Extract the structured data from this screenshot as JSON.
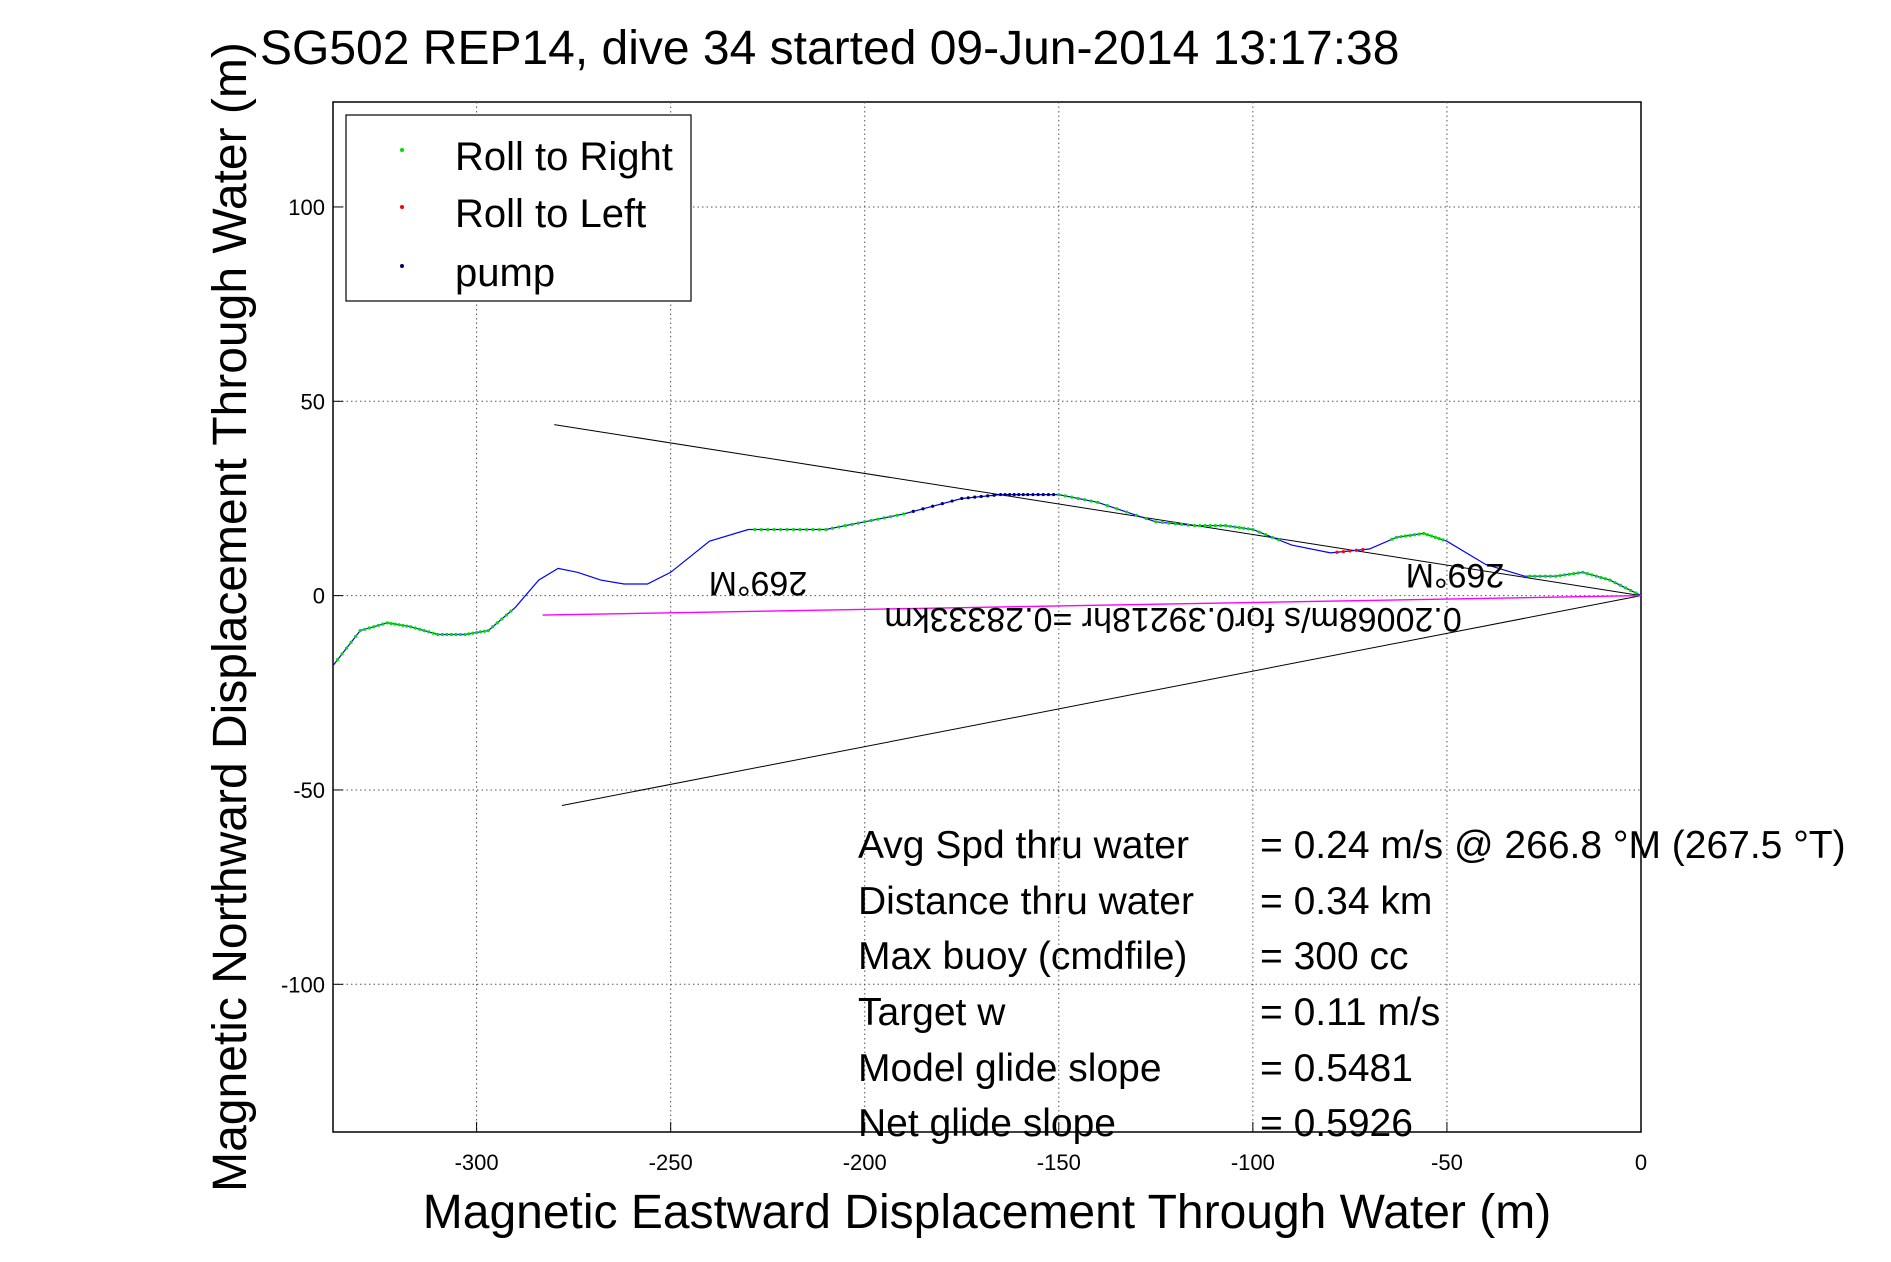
{
  "chart_data": {
    "type": "line",
    "title": "SG502 REP14, dive 34 started 09-Jun-2014 13:17:38",
    "xlabel": "Magnetic Eastward Displacement Through Water (m)",
    "ylabel": "Magnetic Northward Displacement Through Water (m)",
    "xlim": [
      -337,
      0
    ],
    "ylim": [
      -138,
      127
    ],
    "grid": true,
    "legend_placement": "top-left",
    "x_ticks": [
      "-300",
      "-250",
      "-200",
      "-150",
      "-100",
      "-50",
      "0"
    ],
    "y_ticks": [
      "100",
      "50",
      "0",
      "-50",
      "-100"
    ],
    "x_tick_values": [
      -300,
      -250,
      -200,
      -150,
      -100,
      -50,
      0
    ],
    "y_tick_values": [
      100,
      50,
      0,
      -50,
      -100
    ],
    "legend": [
      {
        "label": "Roll to Right",
        "color": "#00dd00"
      },
      {
        "label": "Roll to Left",
        "color": "#ff0000"
      },
      {
        "label": "pump",
        "color": "#000066"
      }
    ],
    "series": [
      {
        "color": "#0000ff",
        "x": [
          0,
          -8,
          -15,
          -22,
          -30,
          -40,
          -50,
          -56,
          -63,
          -70,
          -80,
          -90,
          -100,
          -107,
          -115,
          -125,
          -140,
          -150,
          -158,
          -165,
          -175,
          -190,
          -200,
          -210,
          -220,
          -230,
          -240,
          -250,
          -256,
          -262,
          -268,
          -274,
          -279,
          -284,
          -290,
          -297,
          -303,
          -310,
          -317,
          -323,
          -330,
          -337
        ],
        "y": [
          0,
          4,
          6,
          5,
          5,
          8,
          14,
          16,
          15,
          12,
          11,
          13,
          17,
          18,
          18,
          19,
          24,
          26,
          26,
          26,
          25,
          21,
          19,
          17,
          17,
          17,
          14,
          6,
          3,
          3,
          4,
          6,
          7,
          4,
          -3,
          -9,
          -10,
          -10,
          -8,
          -7,
          -9,
          -18
        ]
      },
      {
        "color": "#ff00ff",
        "x": [
          0,
          -283
        ],
        "y": [
          0,
          -5
        ]
      }
    ],
    "fan_lines": [
      {
        "color": "#000000",
        "x": [
          0,
          -280
        ],
        "y": [
          0,
          44
        ]
      },
      {
        "color": "#000000",
        "x": [
          0,
          -278
        ],
        "y": [
          0,
          -54
        ]
      }
    ],
    "heading_labels": [
      "269°M",
      "269°M"
    ],
    "leg_label": "0.20068m/s for0.39218hr =0.28333km",
    "stats": [
      {
        "label": "Avg Spd thru water",
        "value": "=  0.24 m/s @ 266.8 °M (267.5 °T)"
      },
      {
        "label": "Distance thru water",
        "value": "=  0.34 km"
      },
      {
        "label": "Max buoy (cmdfile)",
        "value": "= 300 cc"
      },
      {
        "label": "Target w",
        "value": "= 0.11 m/s"
      },
      {
        "label": "Model glide slope",
        "value": "= 0.5481"
      },
      {
        "label": "Net glide slope",
        "value": "= 0.5926"
      }
    ]
  }
}
